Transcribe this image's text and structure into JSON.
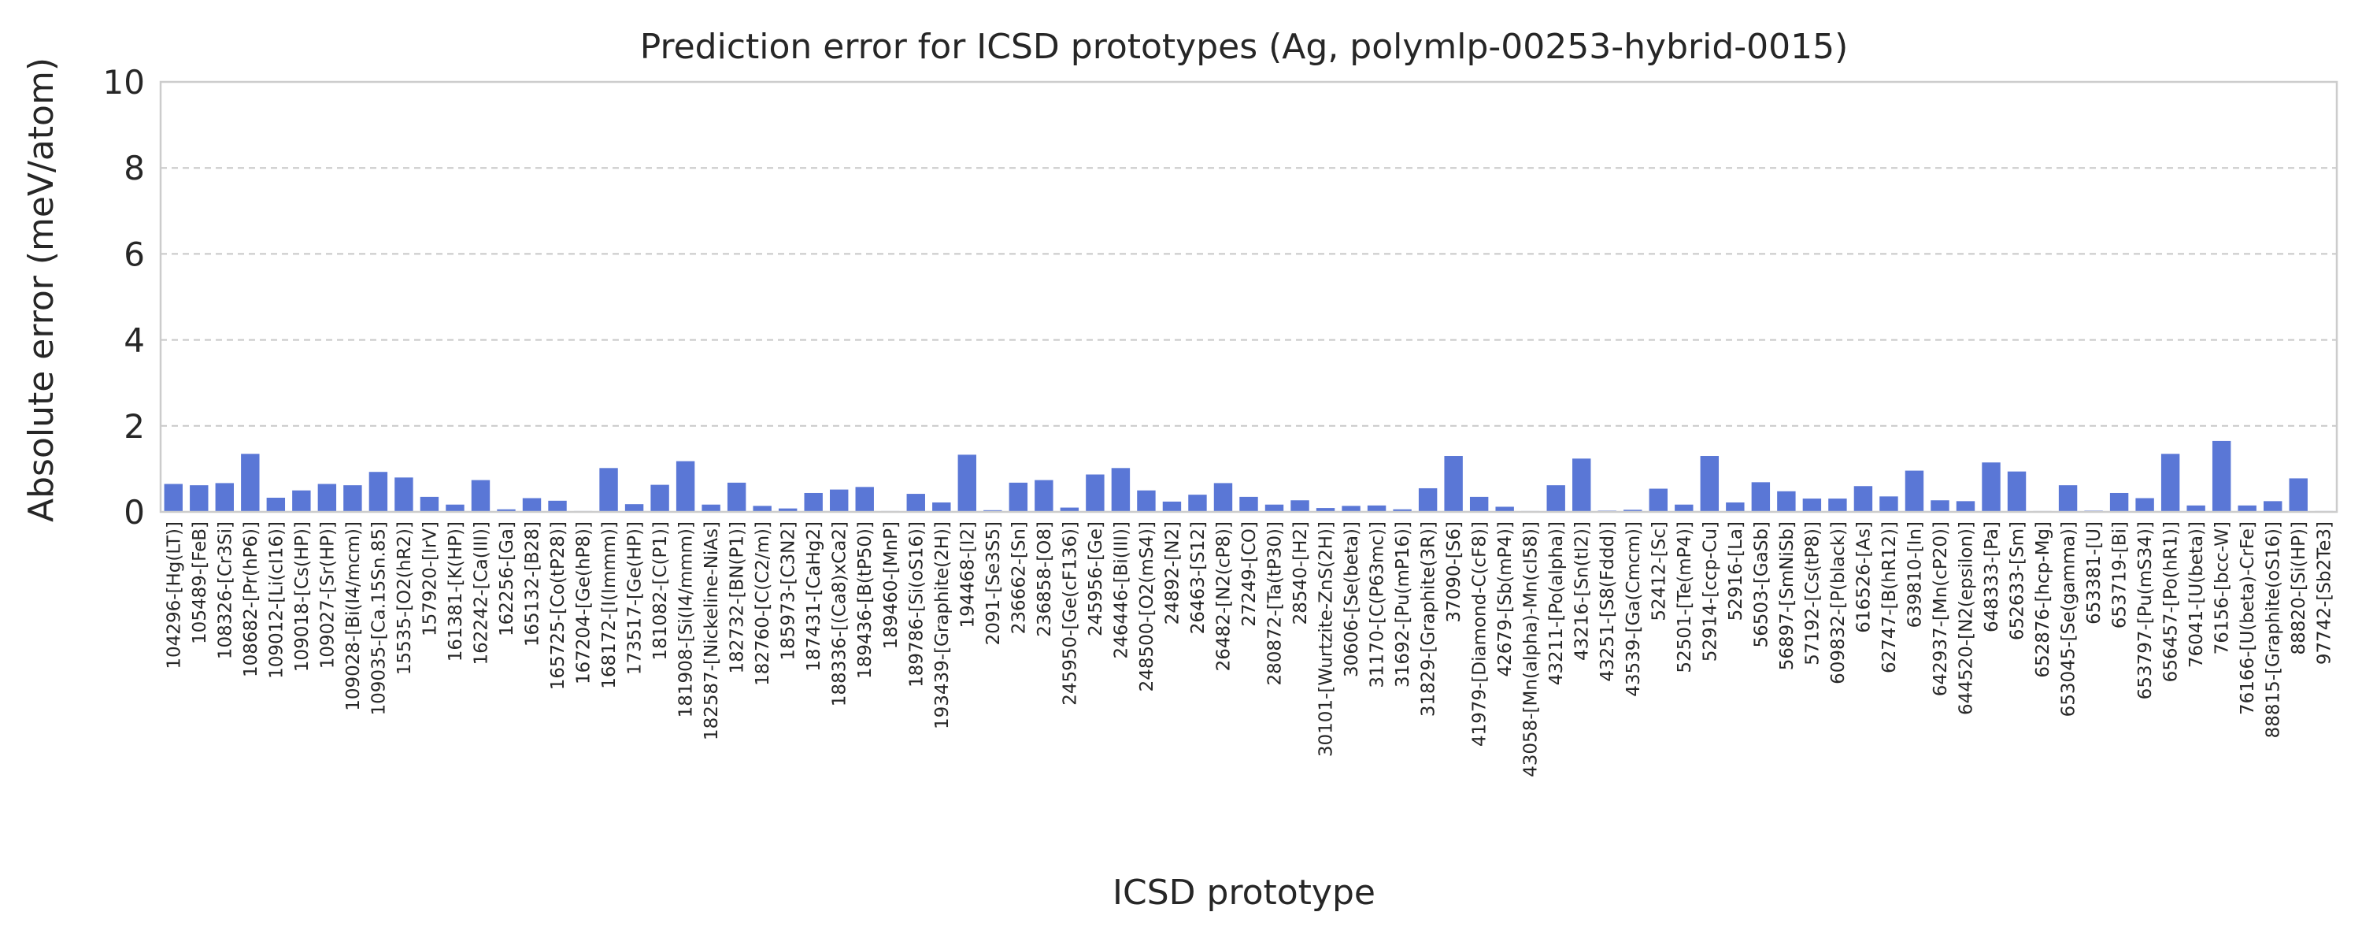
{
  "chart_data": {
    "type": "bar",
    "title": "Prediction error for ICSD prototypes (Ag, polymlp-00253-hybrid-0015)",
    "xlabel": "ICSD prototype",
    "ylabel": "Absolute error (meV/atom)",
    "ylim": [
      0,
      10
    ],
    "yticks": [
      0,
      2,
      4,
      6,
      8,
      10
    ],
    "grid": "horizontal dashed",
    "bar_color": "#5a77d6",
    "categories": [
      "104296-[Hg(LT)]",
      "105489-[FeB]",
      "108326-[Cr3Si]",
      "108682-[Pr(hP6)]",
      "109012-[Li(cI16)]",
      "109018-[Cs(HP)]",
      "109027-[Sr(HP)]",
      "109028-[Bi(I4/mcm)]",
      "109035-[Ca.15Sn.85]",
      "15535-[O2(hR2)]",
      "157920-[IrV]",
      "161381-[K(HP)]",
      "162242-[Ca(III)]",
      "162256-[Ga]",
      "165132-[B28]",
      "165725-[Co(tP28)]",
      "167204-[Ge(hP8)]",
      "168172-[I(Immm)]",
      "173517-[Ge(HP)]",
      "181082-[C(P1)]",
      "181908-[Si(I4/mmm)]",
      "182587-[Nickeline-NiAs]",
      "182732-[BN(P1)]",
      "182760-[C(C2/m)]",
      "185973-[C3N2]",
      "187431-[CaHg2]",
      "188336-[(Ca8)xCa2]",
      "189436-[B(tP50)]",
      "189460-[MnP]",
      "189786-[Si(oS16)]",
      "193439-[Graphite(2H)]",
      "194468-[I2]",
      "2091-[Se3S5]",
      "236662-[Sn]",
      "236858-[O8]",
      "245950-[Ge(cF136)]",
      "245956-[Ge]",
      "246446-[Bi(III)]",
      "248500-[O2(mS4)]",
      "24892-[N2]",
      "26463-[S12]",
      "26482-[N2(cP8)]",
      "27249-[CO]",
      "280872-[Ta(tP30)]",
      "28540-[H2]",
      "30101-[Wurtzite-ZnS(2H)]",
      "30606-[Se(beta)]",
      "31170-[C(P63mc)]",
      "31692-[Pu(mP16)]",
      "31829-[Graphite(3R)]",
      "37090-[S6]",
      "41979-[Diamond-C(cF8)]",
      "42679-[Sb(mP4)]",
      "43058-[Mn(alpha)-Mn(cI58)]",
      "43211-[Po(alpha)]",
      "43216-[Sn(tI2)]",
      "43251-[S8(Fddd)]",
      "43539-[Ga(Cmcm)]",
      "52412-[Sc]",
      "52501-[Te(mP4)]",
      "52914-[ccp-Cu]",
      "52916-[La]",
      "56503-[GaSb]",
      "56897-[SmNiSb]",
      "57192-[Cs(tP8)]",
      "609832-[P(black)]",
      "616526-[As]",
      "62747-[B(hR12)]",
      "639810-[In]",
      "642937-[Mn(cP20)]",
      "644520-[N2(epsilon)]",
      "648333-[Pa]",
      "652633-[Sm]",
      "652876-[hcp-Mg]",
      "653045-[Se(gamma)]",
      "653381-[U]",
      "653719-[Bi]",
      "653797-[Pu(mS34)]",
      "656457-[Po(hR1)]",
      "76041-[U(beta)]",
      "76156-[bcc-W]",
      "76166-[U(beta)-CrFe]",
      "88815-[Graphite(oS16)]",
      "88820-[Si(HP)]",
      "97742-[Sb2Te3]"
    ],
    "values": [
      0.65,
      0.62,
      0.67,
      1.35,
      0.33,
      0.5,
      0.65,
      0.62,
      0.93,
      0.8,
      0.35,
      0.17,
      0.74,
      0.06,
      0.32,
      0.26,
      0.02,
      1.02,
      0.18,
      0.63,
      1.18,
      0.17,
      0.68,
      0.14,
      0.08,
      0.44,
      0.52,
      0.58,
      0.02,
      0.42,
      0.22,
      1.33,
      0.04,
      0.68,
      0.74,
      0.1,
      0.87,
      1.02,
      0.5,
      0.24,
      0.4,
      0.67,
      0.35,
      0.17,
      0.27,
      0.09,
      0.14,
      0.15,
      0.06,
      0.55,
      1.3,
      0.35,
      0.12,
      0.02,
      0.62,
      1.24,
      0.03,
      0.05,
      0.54,
      0.17,
      1.3,
      0.22,
      0.69,
      0.48,
      0.31,
      0.31,
      0.6,
      0.36,
      0.96,
      0.27,
      0.25,
      1.15,
      0.94,
      0.02,
      0.62,
      0.03,
      0.44,
      0.32,
      1.35,
      0.15,
      1.65,
      0.15,
      0.25,
      0.78,
      0.02
    ]
  }
}
